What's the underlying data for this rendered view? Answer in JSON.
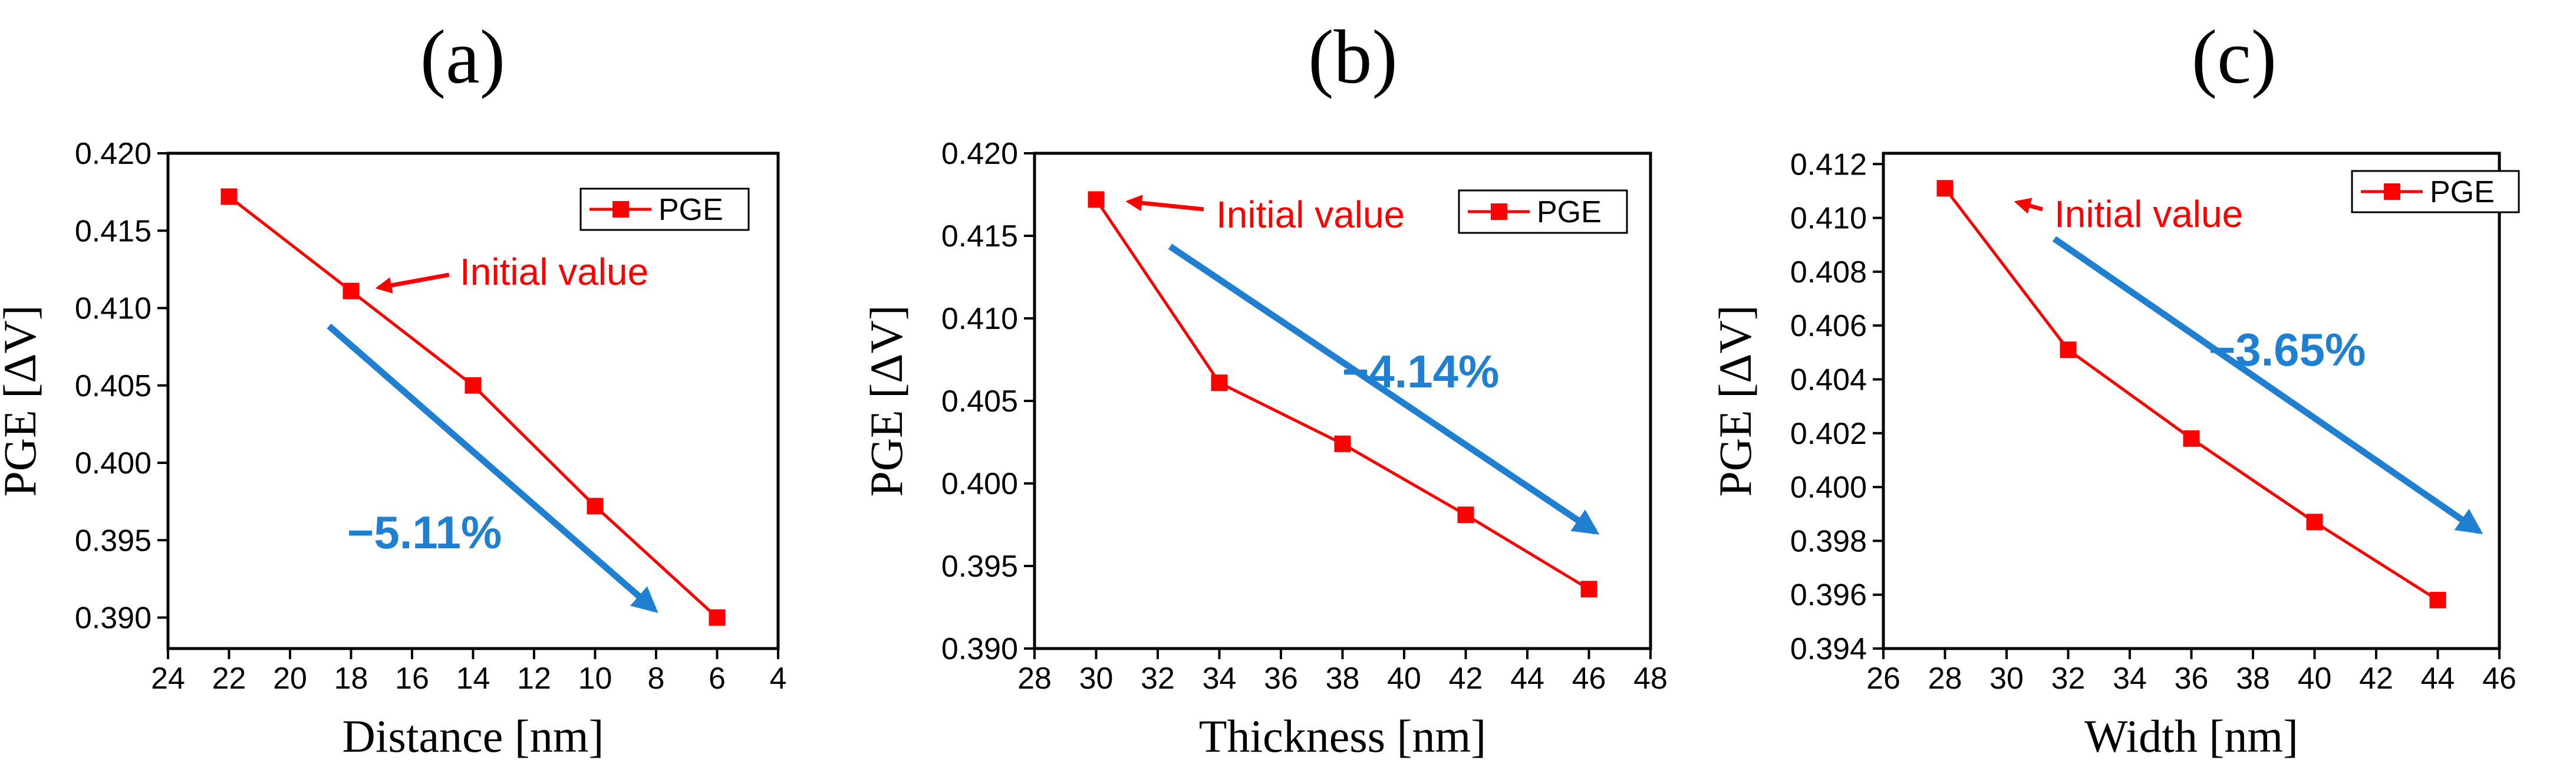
{
  "colors": {
    "series": "#ff0000",
    "trend_arrow": "#1f7fd0",
    "axis": "#000000"
  },
  "chart_data": [
    {
      "type": "line",
      "panel_label": "(a)",
      "xlabel": "Distance [nm]",
      "ylabel": "PGE [ΔV]",
      "xlim": [
        24,
        4
      ],
      "ylim": [
        0.388,
        0.42
      ],
      "xticks": [
        "24",
        "22",
        "20",
        "18",
        "16",
        "14",
        "12",
        "10",
        "8",
        "6",
        "4"
      ],
      "yticks": [
        "0.390",
        "0.395",
        "0.400",
        "0.405",
        "0.410",
        "0.415",
        "0.420"
      ],
      "series": [
        {
          "name": "PGE",
          "x": [
            22,
            18,
            14,
            10,
            6
          ],
          "y": [
            0.4172,
            0.4111,
            0.405,
            0.3972,
            0.39
          ]
        }
      ],
      "legend": "top-right",
      "annotations": {
        "initial": "Initial value",
        "change": "−5.11%"
      }
    },
    {
      "type": "line",
      "panel_label": "(b)",
      "xlabel": "Thickness [nm]",
      "ylabel": "PGE [ΔV]",
      "xlim": [
        28,
        48
      ],
      "ylim": [
        0.39,
        0.42
      ],
      "xticks": [
        "28",
        "30",
        "32",
        "34",
        "36",
        "38",
        "40",
        "42",
        "44",
        "46",
        "48"
      ],
      "yticks": [
        "0.390",
        "0.395",
        "0.400",
        "0.405",
        "0.410",
        "0.415",
        "0.420"
      ],
      "series": [
        {
          "name": "PGE",
          "x": [
            30,
            34,
            38,
            42,
            46
          ],
          "y": [
            0.4172,
            0.4061,
            0.4024,
            0.3981,
            0.3936
          ]
        }
      ],
      "legend": "top-right",
      "annotations": {
        "initial": "Initial value",
        "change": "−4.14%"
      }
    },
    {
      "type": "line",
      "panel_label": "(c)",
      "xlabel": "Width [nm]",
      "ylabel": "PGE [ΔV]",
      "xlim": [
        26,
        46
      ],
      "ylim": [
        0.394,
        0.4124
      ],
      "xticks": [
        "26",
        "28",
        "30",
        "32",
        "34",
        "36",
        "38",
        "40",
        "42",
        "44",
        "46"
      ],
      "yticks": [
        "0.394",
        "0.396",
        "0.398",
        "0.400",
        "0.402",
        "0.404",
        "0.406",
        "0.408",
        "0.410",
        "0.412"
      ],
      "series": [
        {
          "name": "PGE",
          "x": [
            28,
            32,
            36,
            40,
            44
          ],
          "y": [
            0.4111,
            0.4051,
            0.4018,
            0.3987,
            0.3958
          ]
        }
      ],
      "legend": "top-right",
      "annotations": {
        "initial": "Initial value",
        "change": "−3.65%"
      }
    }
  ]
}
